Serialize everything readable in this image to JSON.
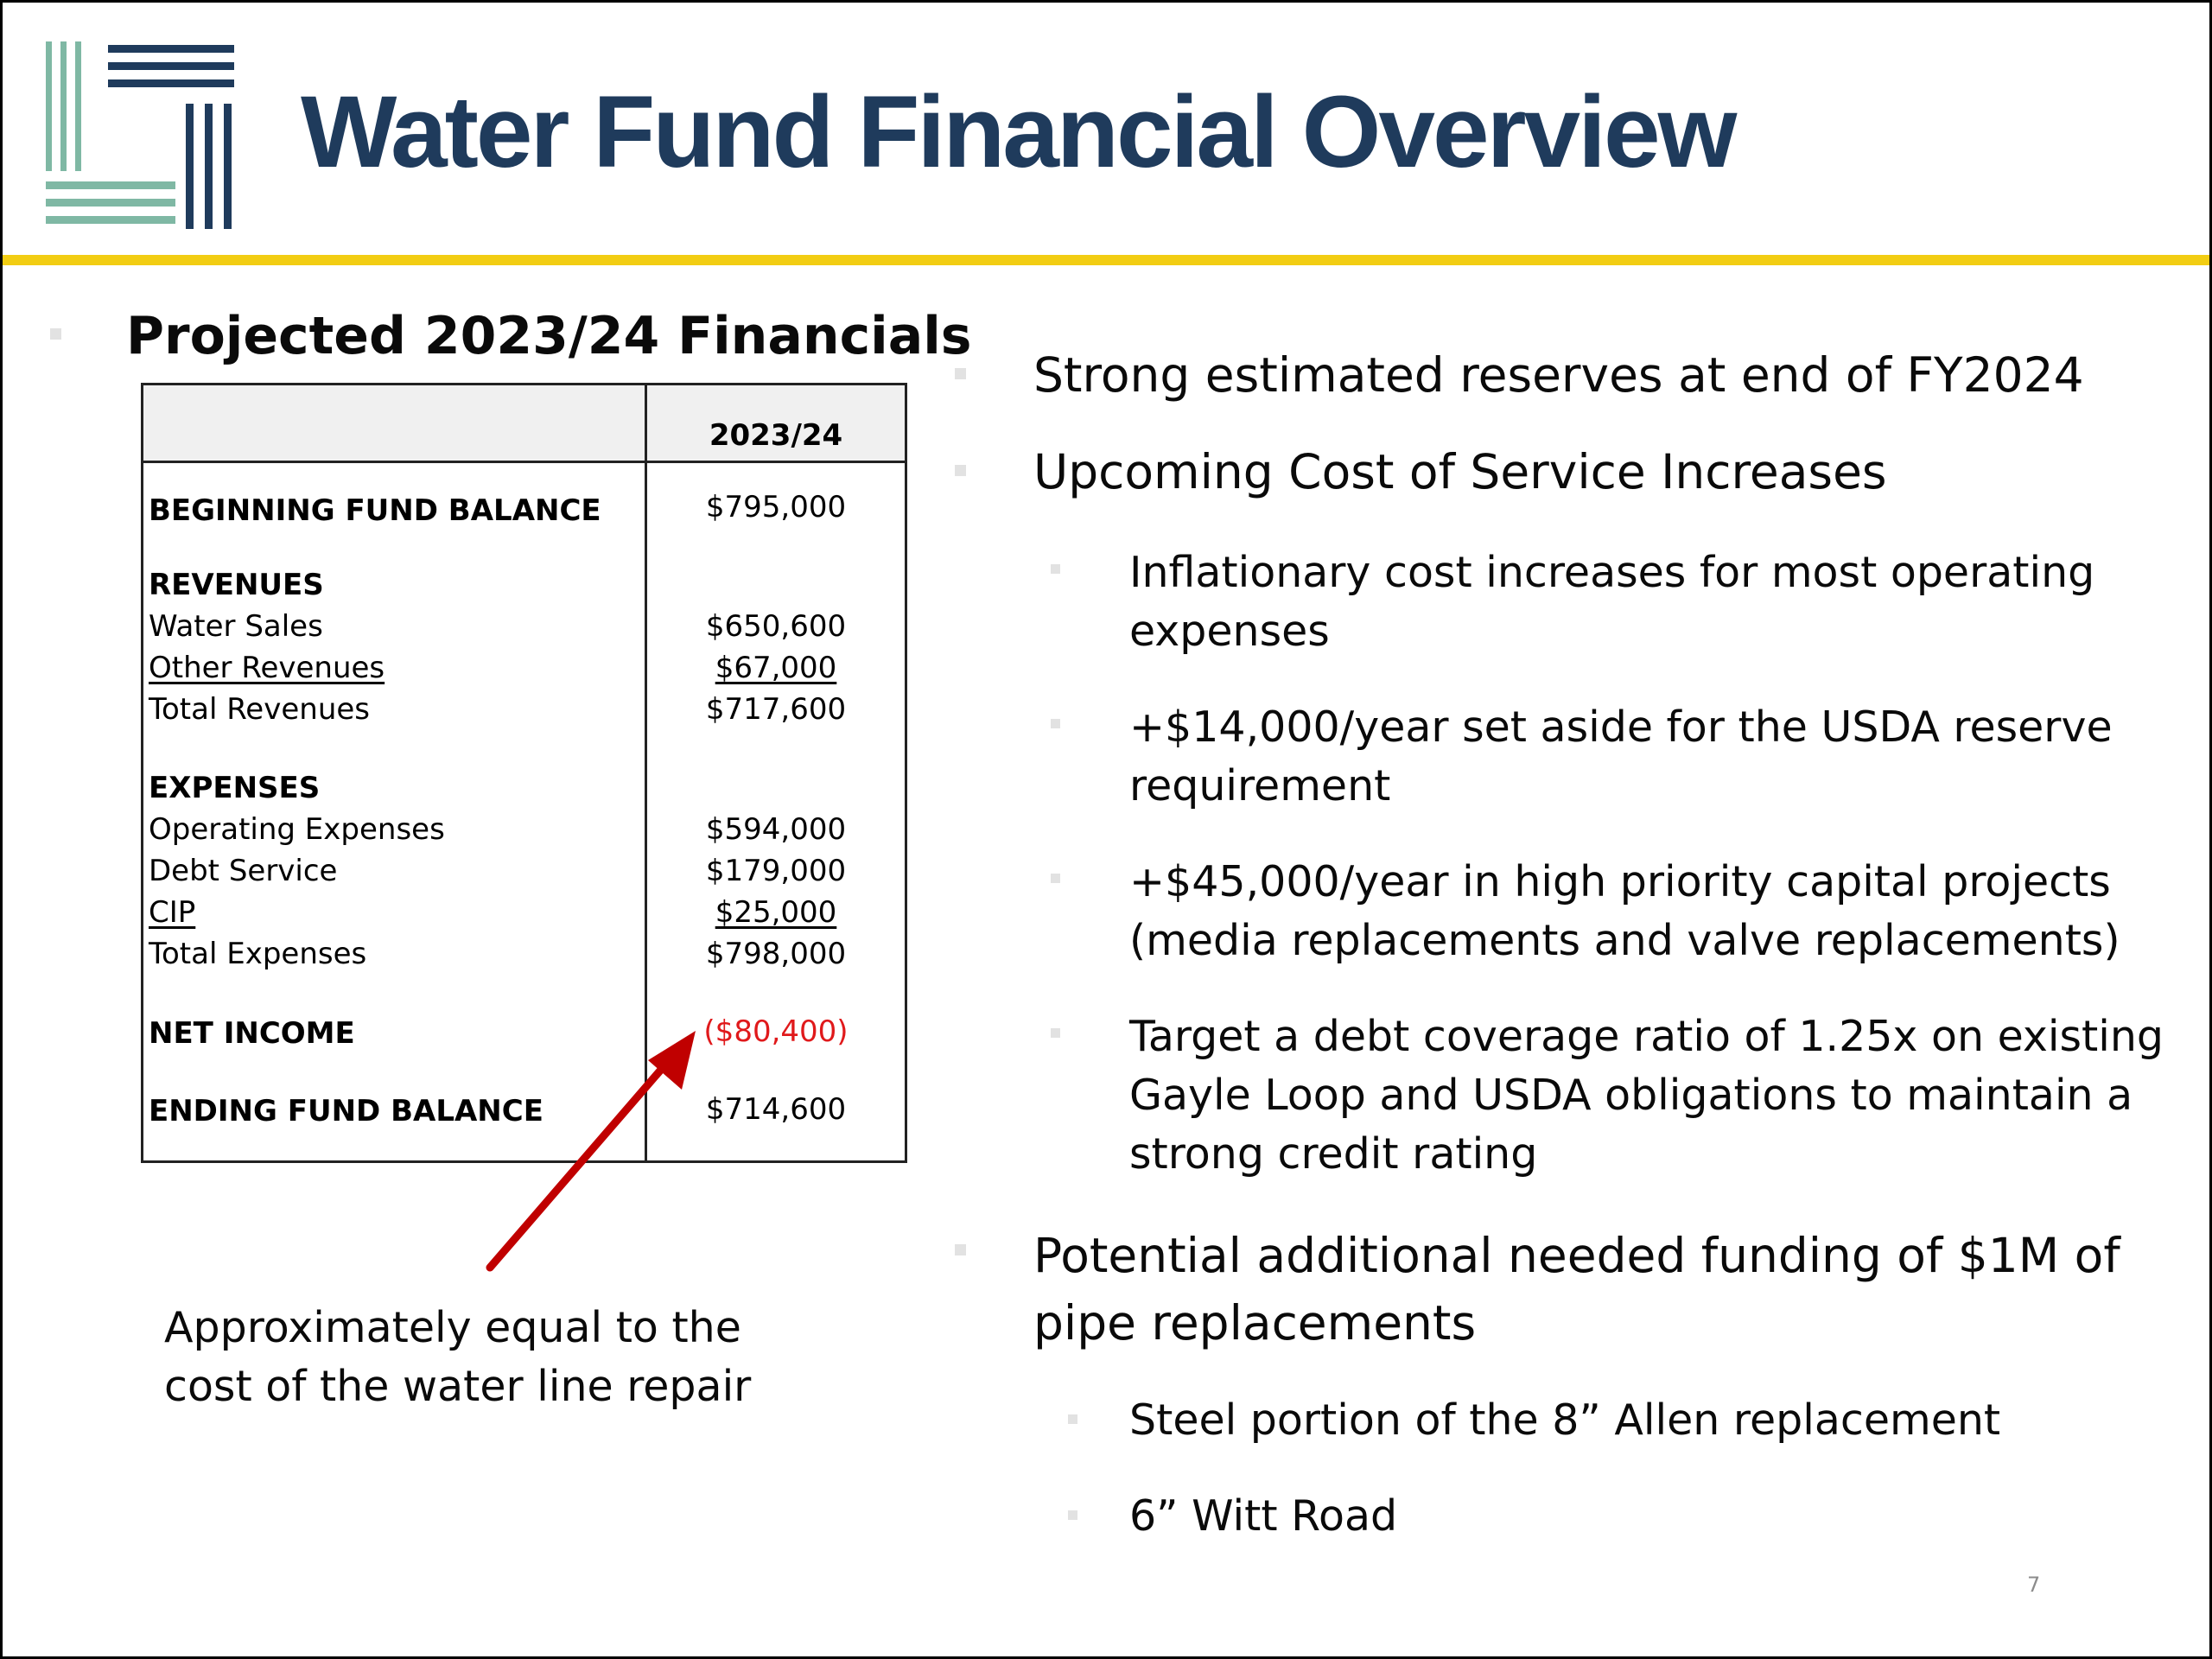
{
  "header": {
    "title": "Water Fund Financial Overview"
  },
  "colors": {
    "title": "#1f3b5c",
    "accent_rule": "#f2cd13",
    "logo_teal": "#7fb8a4",
    "logo_navy": "#1f3b5c",
    "negative": "#e0191b",
    "arrow": "#c00000",
    "bullet": "#e2e2e2"
  },
  "logo": {
    "name": "stripe-logo"
  },
  "left": {
    "heading": "Projected 2023/24 Financials",
    "table": {
      "column_header": "2023/24",
      "beginning": {
        "label": "BEGINNING FUND BALANCE",
        "value": "$795,000"
      },
      "revenues_header": "REVENUES",
      "revenues": [
        {
          "label": "Water Sales",
          "value": "$650,600"
        },
        {
          "label": "Other Revenues",
          "value": "$67,000"
        },
        {
          "label": "Total Revenues",
          "value": "$717,600"
        }
      ],
      "expenses_header": "EXPENSES",
      "expenses": [
        {
          "label": "Operating Expenses",
          "value": "$594,000"
        },
        {
          "label": "Debt Service",
          "value": "$179,000"
        },
        {
          "label": "CIP",
          "value": "$25,000"
        },
        {
          "label": "Total Expenses",
          "value": "$798,000"
        }
      ],
      "net_income": {
        "label": "NET INCOME",
        "value": "($80,400)"
      },
      "ending": {
        "label": "ENDING FUND BALANCE",
        "value": "$714,600"
      }
    },
    "annotation": [
      "Approximately equal to the",
      "cost of the water line repair"
    ]
  },
  "right": {
    "bullets": [
      {
        "lines": [
          "Strong estimated reserves at end of FY2024"
        ]
      },
      {
        "lines": [
          "Upcoming Cost of Service Increases"
        ]
      },
      {
        "lines": [
          "Inflationary cost increases for most operating",
          "expenses"
        ]
      },
      {
        "lines": [
          "+$14,000/year set aside for the USDA reserve",
          "requirement"
        ]
      },
      {
        "lines": [
          "+$45,000/year in high priority capital projects",
          "(media replacements and valve replacements)"
        ]
      },
      {
        "lines": [
          "Target a debt coverage ratio of 1.25x on existing",
          "Gayle Loop and USDA obligations to maintain a",
          "strong credit rating"
        ]
      },
      {
        "lines": [
          "Potential additional needed funding of $1M of",
          "pipe replacements"
        ]
      },
      {
        "lines": [
          "Steel portion of the 8” Allen replacement"
        ]
      },
      {
        "lines": [
          "6” Witt Road"
        ]
      }
    ]
  },
  "footer": {
    "page_number": "7"
  }
}
